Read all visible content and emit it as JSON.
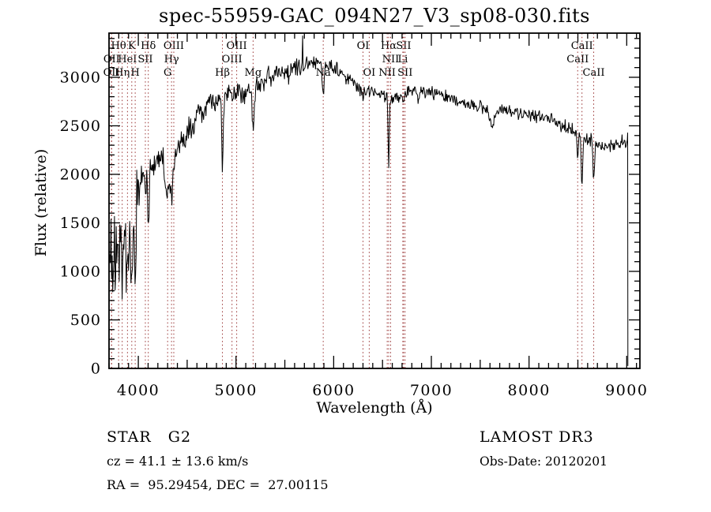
{
  "title": "spec-55959-GAC_094N27_V3_sp08-030.fits",
  "annotations": {
    "class_label": "STAR   G2",
    "cz": "cz = 41.1 ± 13.6 km/s",
    "radec": "RA =  95.29454, DEC =  27.00115",
    "survey": "LAMOST DR3",
    "obs_date": "Obs-Date: 20120201"
  },
  "chart_data": {
    "type": "line",
    "title": "spec-55959-GAC_094N27_V3_sp08-030.fits",
    "xlabel": "Wavelength (Å)",
    "ylabel": "Flux (relative)",
    "xlim": [
      3700,
      9135
    ],
    "ylim": [
      0,
      3455
    ],
    "x_ticks": [
      4000,
      5000,
      6000,
      7000,
      8000,
      9000
    ],
    "y_ticks": [
      0,
      500,
      1000,
      1500,
      2000,
      2500,
      3000
    ],
    "x_minor_step": 100,
    "y_minor_step": 100,
    "grid": false,
    "line_color": "#000000",
    "marker_color": "#993333",
    "spectrum": {
      "description": "LAMOST optical spectrum of a G2 star; jagged noisy flux curve, values below are continuum anchors read from the plot",
      "continuum_anchors": [
        [
          3700,
          1150
        ],
        [
          3750,
          1300
        ],
        [
          3800,
          1350
        ],
        [
          3850,
          1420
        ],
        [
          3900,
          1500
        ],
        [
          3950,
          1450
        ],
        [
          4000,
          1900
        ],
        [
          4050,
          2000
        ],
        [
          4100,
          2000
        ],
        [
          4150,
          2120
        ],
        [
          4200,
          2160
        ],
        [
          4250,
          2100
        ],
        [
          4300,
          2020
        ],
        [
          4350,
          2100
        ],
        [
          4400,
          2250
        ],
        [
          4500,
          2430
        ],
        [
          4600,
          2580
        ],
        [
          4700,
          2700
        ],
        [
          4800,
          2760
        ],
        [
          4900,
          2820
        ],
        [
          5000,
          2840
        ],
        [
          5100,
          2880
        ],
        [
          5200,
          2900
        ],
        [
          5300,
          2980
        ],
        [
          5400,
          3020
        ],
        [
          5500,
          3060
        ],
        [
          5600,
          3100
        ],
        [
          5700,
          3150
        ],
        [
          5800,
          3190
        ],
        [
          5900,
          3160
        ],
        [
          6000,
          3100
        ],
        [
          6100,
          3010
        ],
        [
          6200,
          2950
        ],
        [
          6300,
          2880
        ],
        [
          6400,
          2860
        ],
        [
          6500,
          2820
        ],
        [
          6600,
          2800
        ],
        [
          6700,
          2790
        ],
        [
          6800,
          2870
        ],
        [
          6900,
          2860
        ],
        [
          7000,
          2850
        ],
        [
          7100,
          2820
        ],
        [
          7200,
          2790
        ],
        [
          7300,
          2760
        ],
        [
          7400,
          2720
        ],
        [
          7500,
          2700
        ],
        [
          7600,
          2650
        ],
        [
          7700,
          2660
        ],
        [
          7800,
          2650
        ],
        [
          7900,
          2630
        ],
        [
          8000,
          2620
        ],
        [
          8100,
          2600
        ],
        [
          8200,
          2580
        ],
        [
          8300,
          2530
        ],
        [
          8400,
          2470
        ],
        [
          8500,
          2420
        ],
        [
          8600,
          2370
        ],
        [
          8700,
          2300
        ],
        [
          8800,
          2290
        ],
        [
          8900,
          2310
        ],
        [
          9000,
          2340
        ]
      ],
      "noise_amplitude_anchors": [
        [
          3700,
          400
        ],
        [
          3960,
          400
        ],
        [
          4020,
          170
        ],
        [
          4400,
          140
        ],
        [
          4800,
          110
        ],
        [
          5300,
          100
        ],
        [
          5800,
          95
        ],
        [
          6200,
          75
        ],
        [
          6600,
          65
        ],
        [
          7000,
          60
        ],
        [
          7600,
          62
        ],
        [
          8200,
          65
        ],
        [
          8700,
          70
        ],
        [
          9010,
          70
        ]
      ],
      "absorption_features": [
        {
          "line": "Htheta",
          "wavelength": 3798,
          "depth": 420,
          "width": 6
        },
        {
          "line": "Heta",
          "wavelength": 3835,
          "depth": 450,
          "width": 6
        },
        {
          "line": "HeI",
          "wavelength": 3889,
          "depth": 420,
          "width": 6
        },
        {
          "line": "CaII K",
          "wavelength": 3933,
          "depth": 700,
          "width": 8
        },
        {
          "line": "CaII H",
          "wavelength": 3968,
          "depth": 750,
          "width": 8
        },
        {
          "line": "SII",
          "wavelength": 4072,
          "depth": 150,
          "width": 5
        },
        {
          "line": "Hdelta",
          "wavelength": 4102,
          "depth": 520,
          "width": 7
        },
        {
          "line": "G band",
          "wavelength": 4300,
          "depth": 280,
          "width": 14
        },
        {
          "line": "Hgamma",
          "wavelength": 4340,
          "depth": 420,
          "width": 7
        },
        {
          "line": "OIII",
          "wavelength": 4363,
          "depth": 80,
          "width": 5
        },
        {
          "line": "Hbeta",
          "wavelength": 4861,
          "depth": 800,
          "width": 7
        },
        {
          "line": "Mg b",
          "wavelength": 5175,
          "depth": 420,
          "width": 10
        },
        {
          "line": "Na D",
          "wavelength": 5893,
          "depth": 380,
          "width": 8
        },
        {
          "line": "OI",
          "wavelength": 6300,
          "depth": 120,
          "width": 5
        },
        {
          "line": "Halpha",
          "wavelength": 6563,
          "depth": 720,
          "width": 6
        },
        {
          "line": "telluric B",
          "wavelength": 6870,
          "depth": 120,
          "width": 12
        },
        {
          "line": "telluric A",
          "wavelength": 7620,
          "depth": 160,
          "width": 18
        },
        {
          "line": "CaII",
          "wavelength": 8498,
          "depth": 300,
          "width": 6
        },
        {
          "line": "CaII",
          "wavelength": 8542,
          "depth": 490,
          "width": 7
        },
        {
          "line": "CaII",
          "wavelength": 8662,
          "depth": 400,
          "width": 7
        }
      ],
      "emission_spike": {
        "wavelength": 5680,
        "peak": 3430
      },
      "edge_artifacts": {
        "blue_end": {
          "wavelength": 3700,
          "flux": 10,
          "note": "vertical rise from zero at left edge"
        },
        "red_end": {
          "wavelength": 9012,
          "flux": 25,
          "note": "vertical drop to near zero at ~9010 Å"
        }
      }
    },
    "spectral_line_markers": [
      {
        "label": "Hθ",
        "wavelength": 3798,
        "row": 1
      },
      {
        "label": "K",
        "wavelength": 3933,
        "row": 1
      },
      {
        "label": "Hδ",
        "wavelength": 4102,
        "row": 1
      },
      {
        "label": "OIII",
        "wavelength": 4363,
        "row": 1
      },
      {
        "label": "OIII",
        "wavelength": 5007,
        "row": 1
      },
      {
        "label": "OI",
        "wavelength": 6300,
        "row": 1
      },
      {
        "label": "Hα",
        "wavelength": 6563,
        "row": 1
      },
      {
        "label": "SII",
        "wavelength": 6716,
        "row": 1
      },
      {
        "label": "CaII",
        "wavelength": 8542,
        "row": 1
      },
      {
        "label": "OII",
        "wavelength": 3727,
        "row": 2
      },
      {
        "label": "HeI",
        "wavelength": 3889,
        "row": 2
      },
      {
        "label": "SII",
        "wavelength": 4072,
        "row": 2
      },
      {
        "label": "Hγ",
        "wavelength": 4340,
        "row": 2
      },
      {
        "label": "OIII",
        "wavelength": 4959,
        "row": 2
      },
      {
        "label": "NII",
        "wavelength": 6583,
        "row": 2
      },
      {
        "label": "Li",
        "wavelength": 6708,
        "row": 2
      },
      {
        "label": "CaII",
        "wavelength": 8498,
        "row": 2
      },
      {
        "label": "OII",
        "wavelength": 3725,
        "row": 3
      },
      {
        "label": "Hη",
        "wavelength": 3835,
        "row": 3
      },
      {
        "label": "H",
        "wavelength": 3968,
        "row": 3
      },
      {
        "label": "G",
        "wavelength": 4300,
        "row": 3
      },
      {
        "label": "Hβ",
        "wavelength": 4861,
        "row": 3
      },
      {
        "label": "Mg",
        "wavelength": 5175,
        "row": 3
      },
      {
        "label": "Na",
        "wavelength": 5893,
        "row": 3
      },
      {
        "label": "OI",
        "wavelength": 6364,
        "row": 3
      },
      {
        "label": "NII",
        "wavelength": 6548,
        "row": 3
      },
      {
        "label": "SII",
        "wavelength": 6731,
        "row": 3
      },
      {
        "label": "CaII",
        "wavelength": 8662,
        "row": 3
      }
    ]
  }
}
